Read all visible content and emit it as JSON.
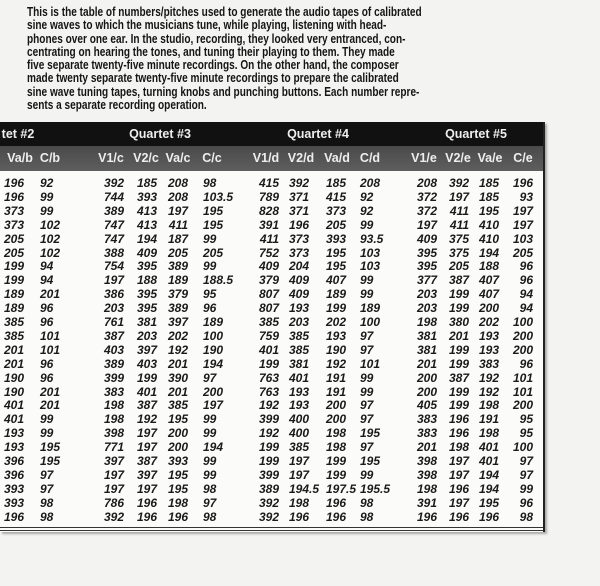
{
  "intro": {
    "lines": [
      "This is the table of numbers/pitches used to generate the audio tapes of calibrated",
      "sine waves to which the musicians tune, while playing, listening with head-",
      "phones over one ear. In the studio, recording, they looked very entranced, con-",
      "centrating on hearing the tones, and tuning their playing to them. They made",
      "five separate twenty-five minute recordings. On the other hand, the composer",
      "made twenty separate twenty-five minute recordings to prepare the calibrated",
      "sine wave tuning tapes, turning knobs and punching buttons. Each number repre-",
      "sents a separate recording operation."
    ]
  },
  "table": {
    "groups": [
      "tet #2",
      "Quartet #3",
      "Quartet #4",
      "Quartet #5"
    ],
    "columns": [
      "Va/b",
      "C/b",
      "V1/c",
      "V2/c",
      "Va/c",
      "C/c",
      "V1/d",
      "V2/d",
      "Va/d",
      "C/d",
      "V1/e",
      "V2/e",
      "Va/e",
      "C/e"
    ],
    "rows": [
      [
        "196",
        "92",
        "392",
        "185",
        "208",
        "98",
        "415",
        "392",
        "185",
        "208",
        "208",
        "392",
        "185",
        "196"
      ],
      [
        "196",
        "99",
        "744",
        "393",
        "208",
        "103.5",
        "789",
        "371",
        "415",
        "92",
        "372",
        "197",
        "185",
        "93"
      ],
      [
        "373",
        "99",
        "389",
        "413",
        "197",
        "195",
        "828",
        "371",
        "373",
        "92",
        "372",
        "411",
        "195",
        "197"
      ],
      [
        "373",
        "102",
        "747",
        "413",
        "411",
        "195",
        "391",
        "196",
        "205",
        "99",
        "197",
        "411",
        "410",
        "197"
      ],
      [
        "205",
        "102",
        "747",
        "194",
        "187",
        "99",
        "411",
        "373",
        "393",
        "93.5",
        "409",
        "375",
        "410",
        "103"
      ],
      [
        "205",
        "102",
        "388",
        "409",
        "205",
        "205",
        "752",
        "373",
        "195",
        "103",
        "395",
        "375",
        "194",
        "205"
      ],
      [
        "199",
        "94",
        "754",
        "395",
        "389",
        "99",
        "409",
        "204",
        "195",
        "103",
        "395",
        "205",
        "188",
        "96"
      ],
      [
        "199",
        "94",
        "197",
        "188",
        "189",
        "188.5",
        "379",
        "409",
        "407",
        "99",
        "377",
        "387",
        "407",
        "96"
      ],
      [
        "189",
        "201",
        "386",
        "395",
        "379",
        "95",
        "807",
        "409",
        "189",
        "99",
        "203",
        "199",
        "407",
        "94"
      ],
      [
        "189",
        "96",
        "203",
        "395",
        "389",
        "96",
        "807",
        "193",
        "199",
        "189",
        "203",
        "199",
        "200",
        "94"
      ],
      [
        "385",
        "96",
        "761",
        "381",
        "397",
        "189",
        "385",
        "203",
        "202",
        "100",
        "198",
        "380",
        "202",
        "100"
      ],
      [
        "385",
        "101",
        "387",
        "203",
        "202",
        "100",
        "759",
        "385",
        "193",
        "97",
        "381",
        "201",
        "193",
        "200"
      ],
      [
        "201",
        "101",
        "403",
        "397",
        "192",
        "190",
        "401",
        "385",
        "190",
        "97",
        "381",
        "199",
        "193",
        "200"
      ],
      [
        "201",
        "96",
        "389",
        "403",
        "201",
        "194",
        "199",
        "381",
        "192",
        "101",
        "201",
        "199",
        "383",
        "96"
      ],
      [
        "190",
        "96",
        "399",
        "199",
        "390",
        "97",
        "763",
        "401",
        "191",
        "99",
        "200",
        "387",
        "192",
        "101"
      ],
      [
        "190",
        "201",
        "383",
        "401",
        "201",
        "200",
        "763",
        "193",
        "191",
        "99",
        "200",
        "199",
        "192",
        "101"
      ],
      [
        "401",
        "201",
        "198",
        "387",
        "385",
        "197",
        "192",
        "193",
        "200",
        "97",
        "405",
        "199",
        "198",
        "200"
      ],
      [
        "401",
        "99",
        "198",
        "192",
        "195",
        "99",
        "399",
        "400",
        "200",
        "97",
        "383",
        "196",
        "191",
        "95"
      ],
      [
        "193",
        "99",
        "398",
        "197",
        "200",
        "99",
        "192",
        "400",
        "198",
        "195",
        "383",
        "196",
        "198",
        "95"
      ],
      [
        "193",
        "195",
        "771",
        "197",
        "200",
        "194",
        "199",
        "385",
        "198",
        "97",
        "201",
        "198",
        "401",
        "100"
      ],
      [
        "396",
        "195",
        "397",
        "387",
        "393",
        "99",
        "199",
        "197",
        "199",
        "195",
        "398",
        "197",
        "401",
        "97"
      ],
      [
        "396",
        "97",
        "197",
        "397",
        "195",
        "99",
        "399",
        "197",
        "199",
        "99",
        "398",
        "197",
        "194",
        "97"
      ],
      [
        "393",
        "97",
        "197",
        "197",
        "195",
        "98",
        "389",
        "194.5",
        "197.5",
        "195.5",
        "198",
        "196",
        "194",
        "99"
      ],
      [
        "393",
        "98",
        "786",
        "196",
        "198",
        "97",
        "392",
        "198",
        "196",
        "98",
        "391",
        "197",
        "195",
        "96"
      ],
      [
        "196",
        "98",
        "392",
        "196",
        "196",
        "98",
        "392",
        "196",
        "196",
        "98",
        "196",
        "196",
        "196",
        "98"
      ]
    ]
  }
}
